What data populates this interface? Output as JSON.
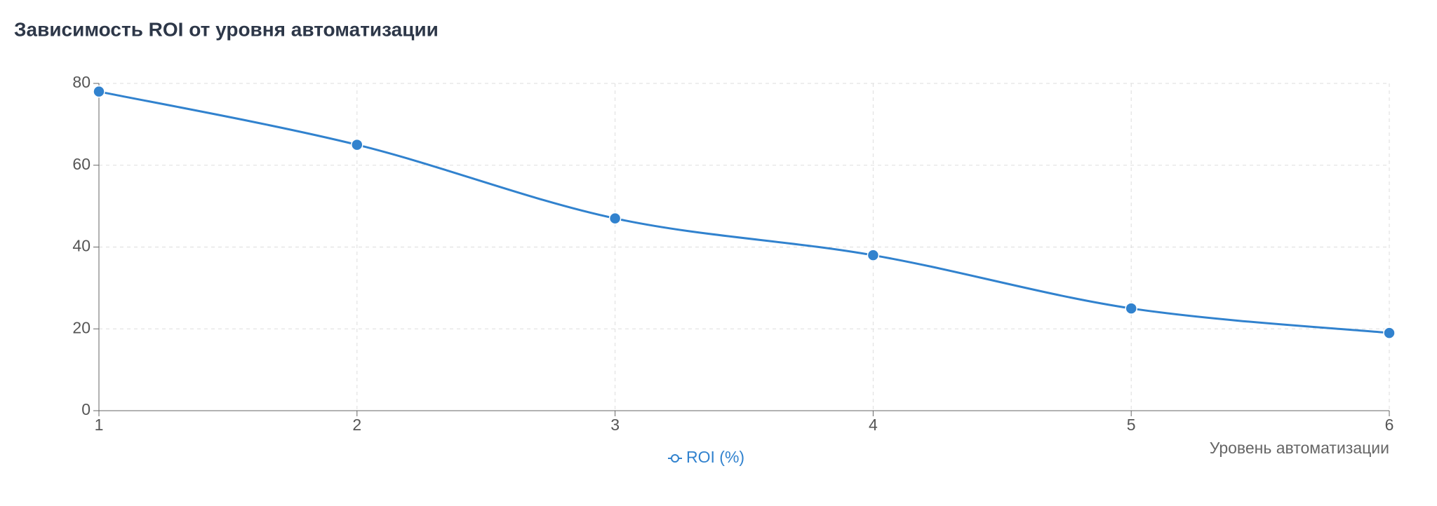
{
  "chart_data": {
    "type": "line",
    "title": "Зависимость ROI от уровня автоматизации",
    "x_label": "Уровень автоматизации",
    "x": [
      1,
      2,
      3,
      4,
      5,
      6
    ],
    "series": [
      {
        "name": "ROI (%)",
        "color": "#3182ce",
        "values": [
          78,
          65,
          47,
          38,
          25,
          19
        ]
      }
    ],
    "xlim": [
      1,
      6
    ],
    "xticks": [
      1,
      2,
      3,
      4,
      5,
      6
    ],
    "ylim": [
      0,
      80
    ],
    "yticks": [
      0,
      20,
      40,
      60,
      80
    ],
    "grid": true
  }
}
